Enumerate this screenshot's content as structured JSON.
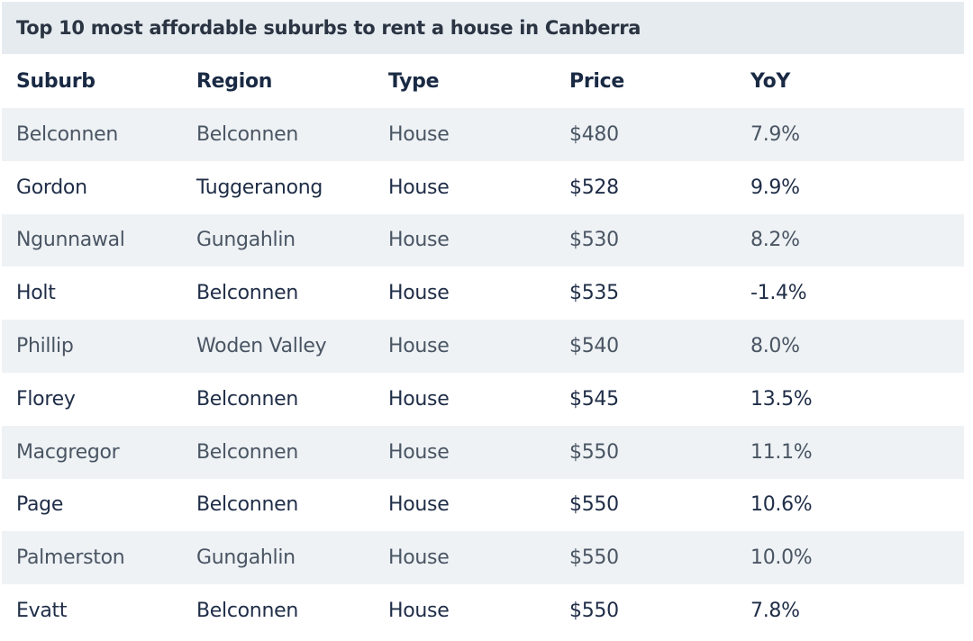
{
  "title": "Top 10 most affordable suburbs to rent a house in Canberra",
  "headers": {
    "suburb": "Suburb",
    "region": "Region",
    "type": "Type",
    "price": "Price",
    "yoy": "YoY"
  },
  "rows": [
    {
      "suburb": "Belconnen",
      "region": "Belconnen",
      "type": "House",
      "price": "$480",
      "yoy": "7.9%"
    },
    {
      "suburb": "Gordon",
      "region": "Tuggeranong",
      "type": "House",
      "price": "$528",
      "yoy": "9.9%"
    },
    {
      "suburb": "Ngunnawal",
      "region": "Gungahlin",
      "type": "House",
      "price": "$530",
      "yoy": "8.2%"
    },
    {
      "suburb": "Holt",
      "region": "Belconnen",
      "type": "House",
      "price": "$535",
      "yoy": "-1.4%"
    },
    {
      "suburb": "Phillip",
      "region": "Woden Valley",
      "type": "House",
      "price": "$540",
      "yoy": "8.0%"
    },
    {
      "suburb": "Florey",
      "region": "Belconnen",
      "type": "House",
      "price": "$545",
      "yoy": "13.5%"
    },
    {
      "suburb": "Macgregor",
      "region": "Belconnen",
      "type": "House",
      "price": "$550",
      "yoy": "11.1%"
    },
    {
      "suburb": "Page",
      "region": "Belconnen",
      "type": "House",
      "price": "$550",
      "yoy": "10.6%"
    },
    {
      "suburb": "Palmerston",
      "region": "Gungahlin",
      "type": "House",
      "price": "$550",
      "yoy": "10.0%"
    },
    {
      "suburb": "Evatt",
      "region": "Belconnen",
      "type": "House",
      "price": "$550",
      "yoy": "7.8%"
    }
  ],
  "colors": {
    "title_bg": "#e6ebf0",
    "stripe_bg": "#eef2f5",
    "header_text": "#1a2a44",
    "muted_text": "#4a5563",
    "dark_text": "#1f2d47"
  }
}
